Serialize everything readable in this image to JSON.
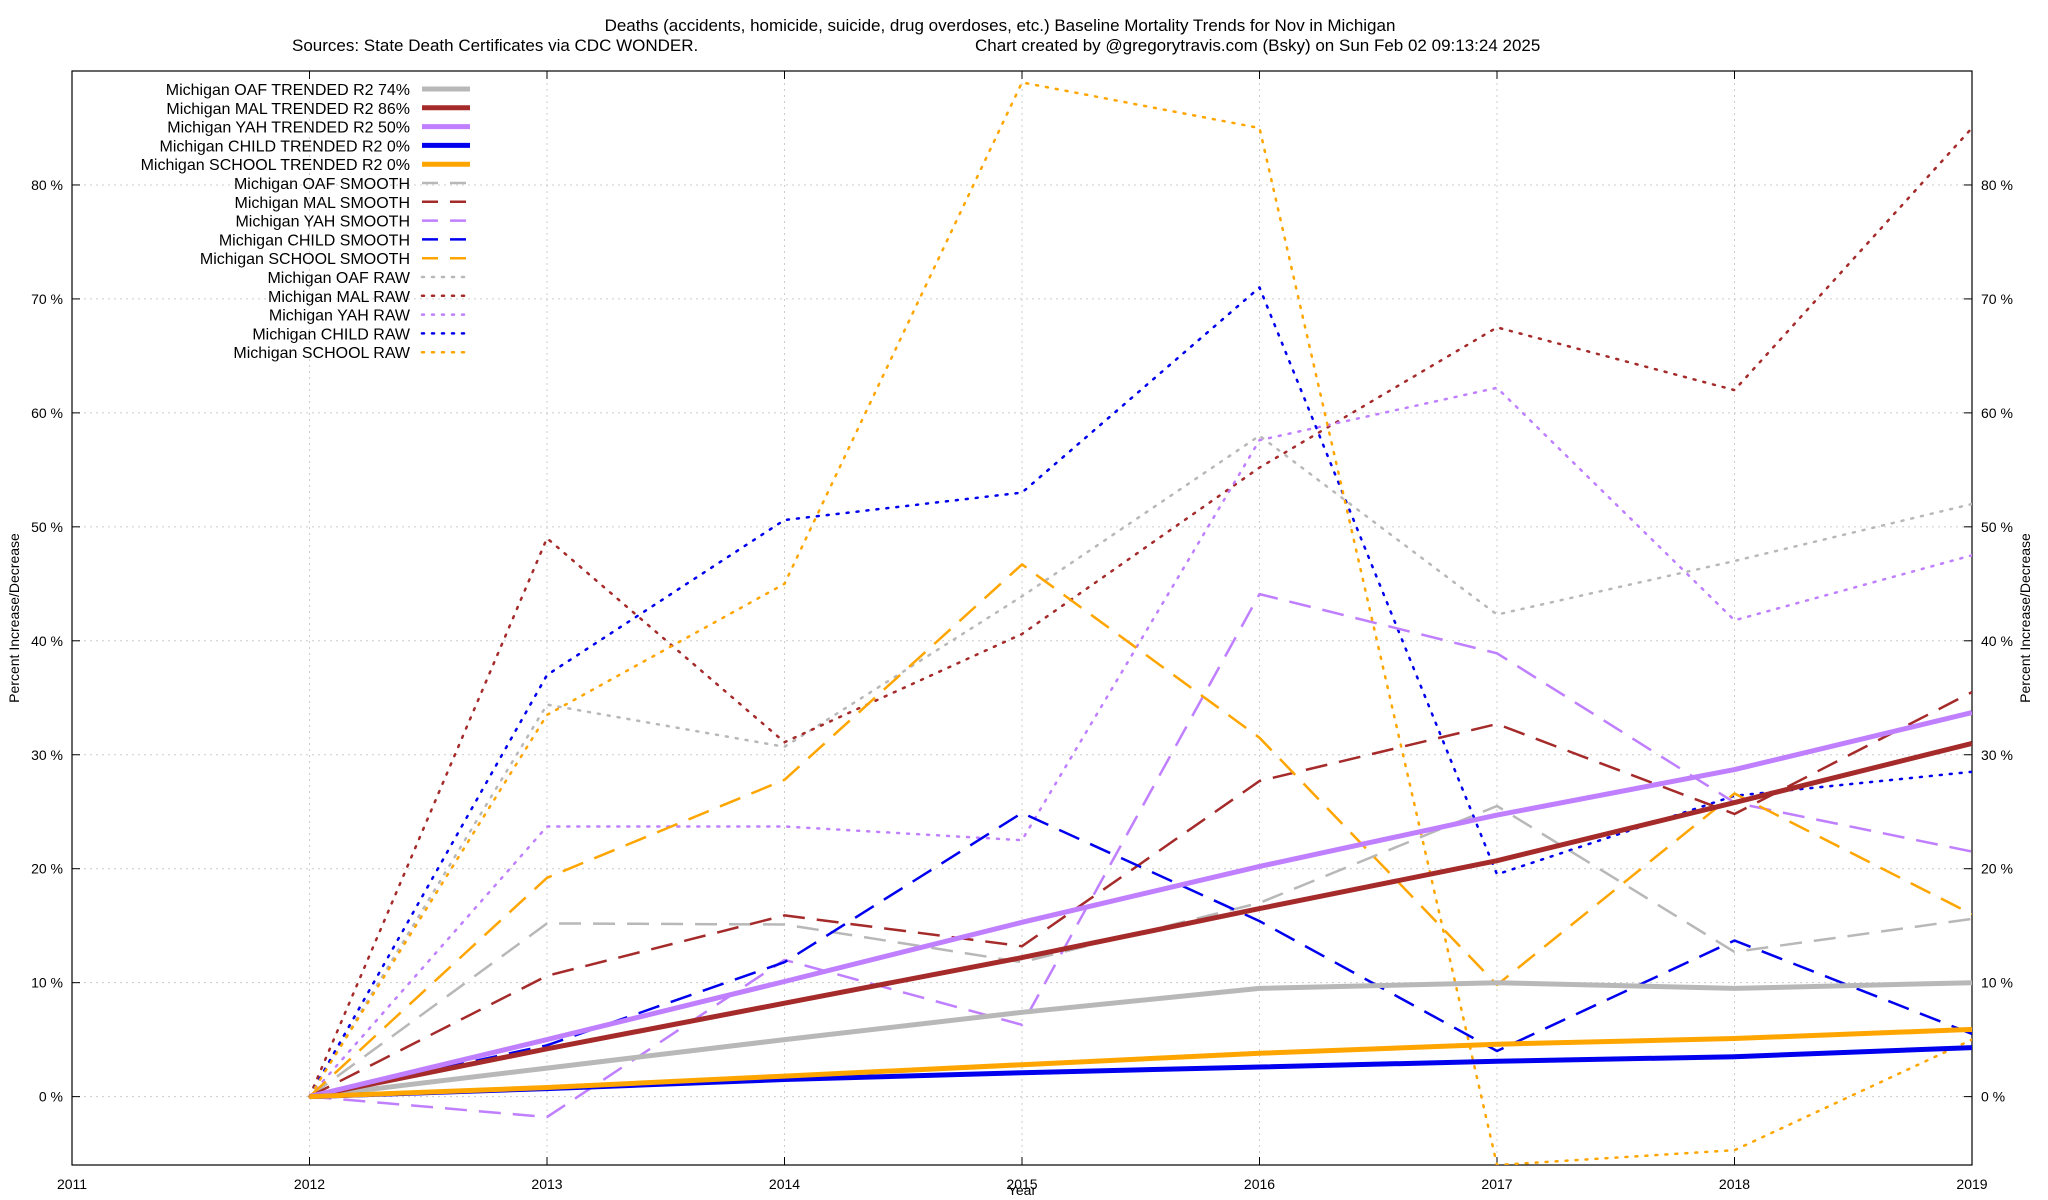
{
  "chart_data": {
    "type": "line",
    "title": "Deaths (accidents, homicide, suicide, drug overdoses, etc.)  Baseline Mortality Trends for Nov in Michigan",
    "subtitle_left": "Sources: State Death Certificates via CDC WONDER.",
    "subtitle_right": "Chart created by @gregorytravis.com (Bsky) on Sun Feb 02 09:13:24 2025",
    "xlabel": "Year",
    "ylabel": "Percent Increase/Decrease",
    "ylabel_right": "Percent Increase/Decrease",
    "xlim": [
      2011,
      2019
    ],
    "ylim": [
      -6,
      90
    ],
    "x_ticks": [
      2011,
      2012,
      2013,
      2014,
      2015,
      2016,
      2017,
      2018,
      2019
    ],
    "x_tick_labels": [
      "2011",
      "2012",
      "2013",
      "2014",
      "2015",
      "2016",
      "2017",
      "2018",
      "2019"
    ],
    "y_ticks": [
      0,
      10,
      20,
      30,
      40,
      50,
      60,
      70,
      80
    ],
    "y_tick_labels": [
      "0 %",
      "10 %",
      "20 %",
      "30 %",
      "40 %",
      "50 %",
      "60 %",
      "70 %",
      "80 %"
    ],
    "grid": true,
    "legend_position": "top-left",
    "x": [
      2012,
      2013,
      2014,
      2015,
      2016,
      2017,
      2018,
      2019
    ],
    "series": [
      {
        "name": "Michigan OAF TRENDED R2  74%",
        "color": "#b8b8b8",
        "style": "solid",
        "width": 5,
        "values": [
          0,
          2.5,
          5,
          7.4,
          9.5,
          10,
          9.5,
          10
        ]
      },
      {
        "name": "Michigan MAL TRENDED R2  86%",
        "color": "#a52a2a",
        "style": "solid",
        "width": 5,
        "values": [
          0,
          4.2,
          8.2,
          12.2,
          16.5,
          20.7,
          25.8,
          31
        ]
      },
      {
        "name": "Michigan YAH TRENDED R2  50%",
        "color": "#bf7fff",
        "style": "solid",
        "width": 5,
        "values": [
          0,
          5,
          10.1,
          15.3,
          20.2,
          24.7,
          28.7,
          33.7
        ]
      },
      {
        "name": "Michigan CHILD TRENDED R2   0%",
        "color": "#0000ee",
        "style": "solid",
        "width": 5,
        "values": [
          0,
          0.7,
          1.5,
          2.1,
          2.6,
          3.1,
          3.5,
          4.3
        ]
      },
      {
        "name": "Michigan SCHOOL TRENDED R2   0%",
        "color": "#ffa500",
        "style": "solid",
        "width": 5,
        "values": [
          0,
          0.8,
          1.8,
          2.8,
          3.8,
          4.6,
          5.1,
          5.9
        ]
      },
      {
        "name": "Michigan OAF SMOOTH",
        "color": "#b8b8b8",
        "style": "dashed",
        "width": 2.5,
        "values": [
          0,
          15.2,
          15.1,
          11.8,
          17,
          25.5,
          12.7,
          15.6
        ]
      },
      {
        "name": "Michigan MAL SMOOTH",
        "color": "#a52a2a",
        "style": "dashed",
        "width": 2.5,
        "values": [
          0,
          10.6,
          15.9,
          13.2,
          27.7,
          32.7,
          24.8,
          35.5
        ]
      },
      {
        "name": "Michigan YAH SMOOTH",
        "color": "#bf7fff",
        "style": "dashed",
        "width": 2.5,
        "values": [
          0,
          -1.8,
          12,
          6.3,
          44.1,
          38.9,
          25.8,
          21.5
        ]
      },
      {
        "name": "Michigan CHILD SMOOTH",
        "color": "#0000ee",
        "style": "dashed",
        "width": 2.5,
        "values": [
          0,
          4.5,
          11.8,
          24.9,
          15.4,
          4,
          13.7,
          5.5
        ]
      },
      {
        "name": "Michigan SCHOOL SMOOTH",
        "color": "#ffa500",
        "style": "dashed",
        "width": 2.5,
        "values": [
          0,
          19.2,
          27.8,
          46.7,
          31.5,
          9.8,
          26.6,
          16
        ]
      },
      {
        "name": "Michigan OAF RAW",
        "color": "#b8b8b8",
        "style": "dotted",
        "width": 2.5,
        "values": [
          0,
          34.4,
          30.7,
          43.9,
          58,
          42.3,
          47,
          52
        ]
      },
      {
        "name": "Michigan MAL RAW",
        "color": "#a52a2a",
        "style": "dotted",
        "width": 2.5,
        "values": [
          0,
          49,
          31.1,
          40.6,
          55.2,
          67.5,
          62,
          85
        ]
      },
      {
        "name": "Michigan YAH RAW",
        "color": "#bf7fff",
        "style": "dotted",
        "width": 2.5,
        "values": [
          0,
          23.7,
          23.7,
          22.5,
          57.6,
          62.2,
          41.8,
          47.5
        ]
      },
      {
        "name": "Michigan CHILD RAW",
        "color": "#0000ee",
        "style": "dotted",
        "width": 2.5,
        "values": [
          0,
          37,
          50.6,
          53,
          71,
          19.5,
          26.4,
          28.5
        ]
      },
      {
        "name": "Michigan SCHOOL RAW",
        "color": "#ffa500",
        "style": "dotted",
        "width": 2.5,
        "values": [
          0,
          33.5,
          45,
          89,
          85,
          -6,
          -4.7,
          5
        ]
      }
    ]
  }
}
